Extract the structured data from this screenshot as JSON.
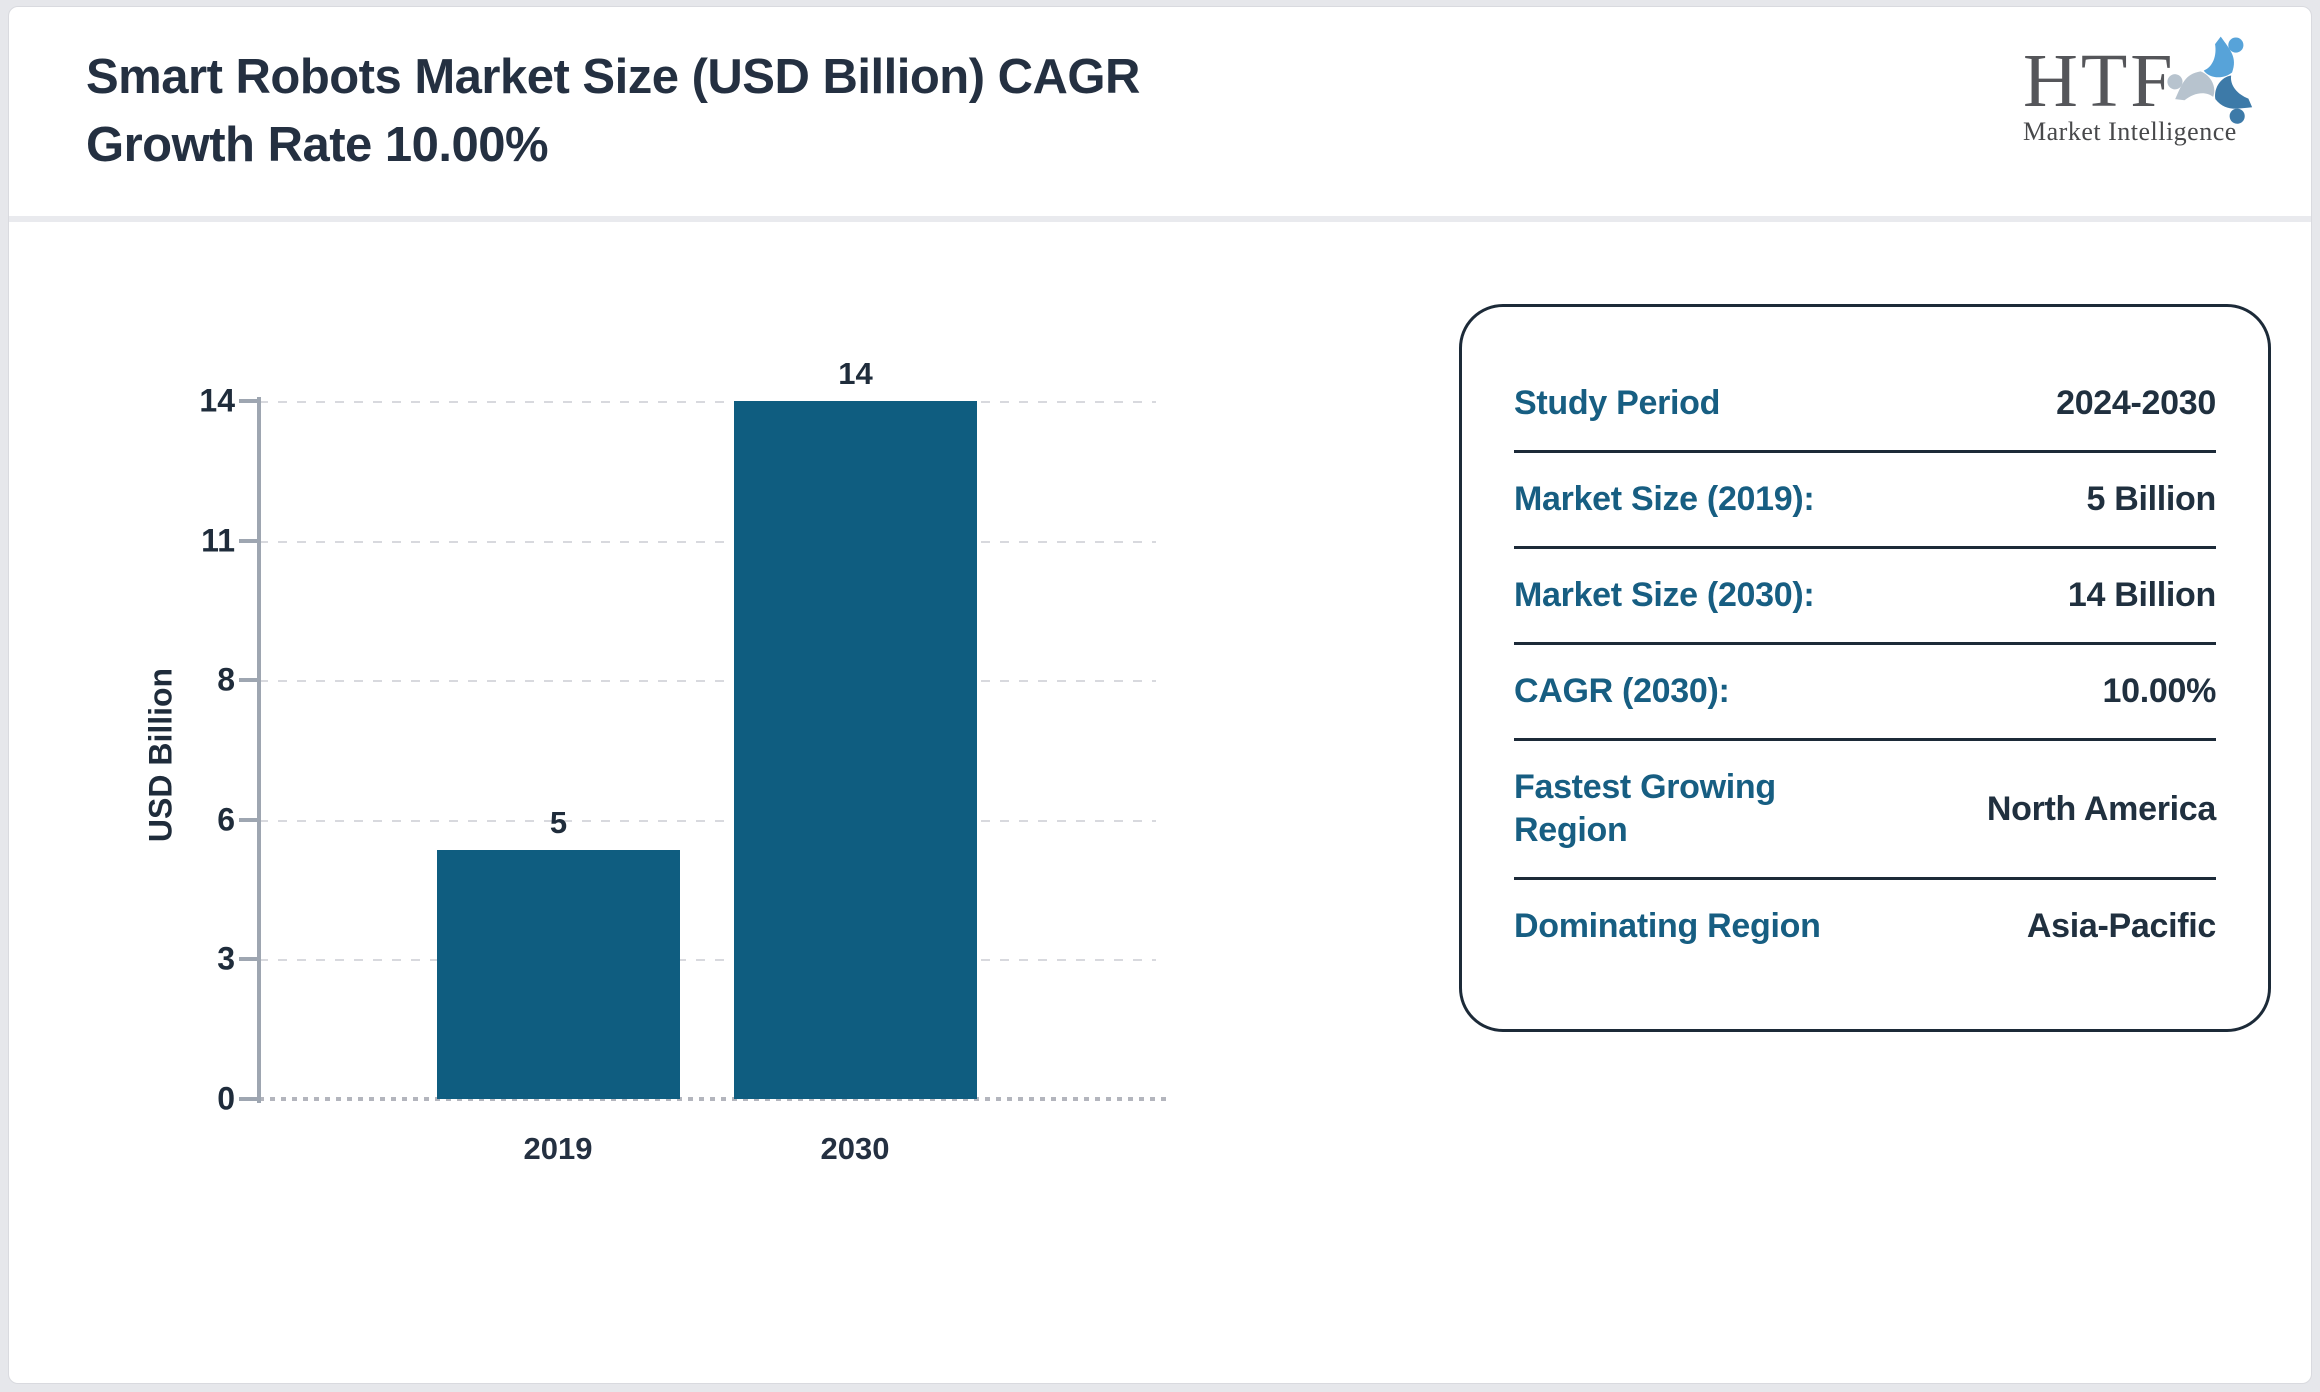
{
  "header": {
    "title_line1": "Smart Robots Market Size (USD Billion) CAGR",
    "title_line2": "Growth Rate 10.00%",
    "logo": {
      "name": "HTF",
      "tagline": "Market Intelligence",
      "icon": "people-swirl-icon"
    }
  },
  "chart_data": {
    "type": "bar",
    "title": "Smart Robots Market Size (USD Billion) CAGR Growth Rate 10.00%",
    "categories": [
      "2019",
      "2030"
    ],
    "values": [
      5,
      14
    ],
    "bar_value_labels": [
      "5",
      "14"
    ],
    "xlabel": "",
    "ylabel": "USD Billion",
    "ylim": [
      0,
      14
    ],
    "yticks": [
      0,
      3,
      6,
      8,
      11,
      14
    ],
    "ytick_labels_top_down": [
      "14",
      "11",
      "8",
      "6",
      "3",
      "0"
    ],
    "grid": "horizontal-dashed",
    "legend": "none",
    "bar_color": "#0f5d80"
  },
  "panel": {
    "rows": [
      {
        "label": "Study Period",
        "value": "2024-2030"
      },
      {
        "label": "Market Size (2019):",
        "value": "5 Billion"
      },
      {
        "label": "Market Size (2030):",
        "value": "14 Billion"
      },
      {
        "label": "CAGR (2030):",
        "value": "10.00%"
      },
      {
        "label": "Fastest Growing Region",
        "value": "North America"
      },
      {
        "label": "Dominating Region",
        "value": "Asia-Pacific"
      }
    ]
  },
  "colors": {
    "accent_teal": "#175e82",
    "navy_text": "#243041",
    "bar": "#0f5d80",
    "page_background": "#e6e7eb",
    "panel_border": "#1c2a38"
  }
}
